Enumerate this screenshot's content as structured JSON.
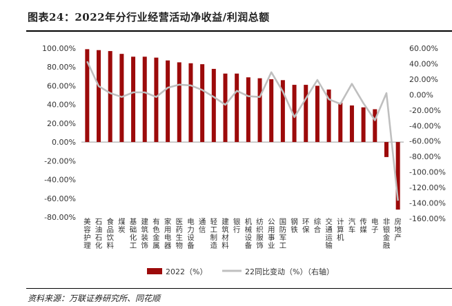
{
  "header": {
    "title": "图表24：2022年分行业经营活动净收益/利润总额"
  },
  "footer": {
    "source": "资料来源：万联证券研究所、同花顺"
  },
  "colors": {
    "bar": "#9c0a0a",
    "line": "#bfbfbf",
    "axis": "#9a9a9a"
  },
  "chart_data": {
    "type": "bar",
    "categories": [
      "美容护理",
      "石油石化",
      "食品饮料",
      "煤炭",
      "基础化工",
      "建筑装饰",
      "有色金属",
      "家用电器",
      "医药生物",
      "电力设备",
      "通信",
      "轻工制造",
      "建筑材料",
      "银行",
      "机械设备",
      "纺织服饰",
      "公用事业",
      "国防军工",
      "钢铁",
      "环保",
      "综合",
      "交通运输",
      "计算机",
      "汽车",
      "传媒",
      "电子",
      "非银金融",
      "房地产"
    ],
    "series": [
      {
        "name": "2022（%）",
        "type": "bar",
        "axis": "left",
        "values": [
          99,
          98,
          97,
          94,
          91,
          91,
          90,
          87,
          85,
          84,
          83,
          78,
          73,
          73,
          69,
          68,
          67,
          66,
          61,
          61,
          60,
          56,
          42,
          39,
          37,
          35,
          -16,
          -72
        ]
      },
      {
        "name": "22同比变动（%）（右轴）",
        "type": "line",
        "axis": "right",
        "values": [
          43,
          11,
          2,
          -3,
          3,
          3,
          -3,
          9,
          13,
          12,
          6,
          -3,
          -13,
          5,
          -2,
          -3,
          29,
          4,
          -29,
          -5,
          19,
          -6,
          -12,
          14,
          -11,
          -33,
          2,
          -137
        ]
      }
    ],
    "left_axis": {
      "ylim": [
        -80,
        100
      ],
      "ticks": [
        "100.00%",
        "80.00%",
        "60.00%",
        "40.00%",
        "20.00%",
        "0.00%",
        "-20.00%",
        "-40.00%",
        "-60.00%",
        "-80.00%"
      ]
    },
    "right_axis": {
      "ylim": [
        -160,
        60
      ],
      "ticks": [
        "60.00%",
        "40.00%",
        "20.00%",
        "0.00%",
        "-20.00%",
        "-40.00%",
        "-60.00%",
        "-80.00%",
        "-100.00%",
        "-120.00%",
        "-140.00%",
        "-160.00%"
      ]
    },
    "legend": {
      "placement": "bottom",
      "labels": [
        "2022（%）",
        "22同比变动（%）（右轴）"
      ]
    }
  }
}
